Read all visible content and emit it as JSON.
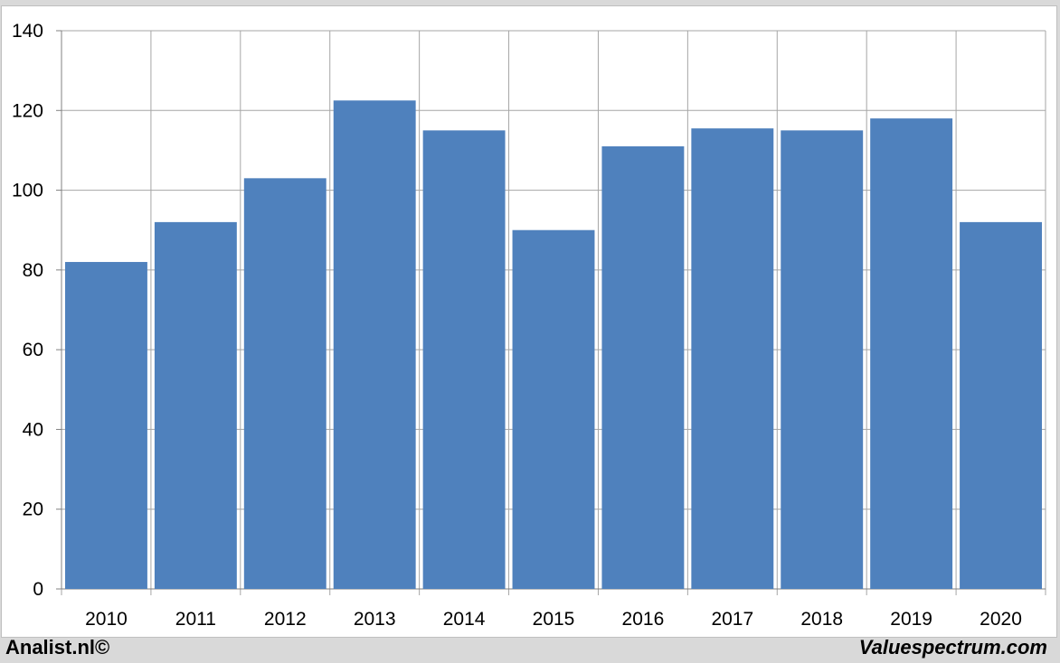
{
  "chart_data": {
    "type": "bar",
    "categories": [
      "2010",
      "2011",
      "2012",
      "2013",
      "2014",
      "2015",
      "2016",
      "2017",
      "2018",
      "2019",
      "2020"
    ],
    "values": [
      82,
      92,
      103,
      122.5,
      115,
      90,
      111,
      115.5,
      115,
      118,
      92
    ],
    "ylim": [
      0,
      140
    ],
    "yticks": [
      0,
      20,
      40,
      60,
      80,
      100,
      120,
      140
    ],
    "grid": true,
    "title": "",
    "xlabel": "",
    "ylabel": "",
    "bar_color": "#4f81bd"
  },
  "footer": {
    "left": "Analist.nl©",
    "right": "Valuespectrum.com"
  }
}
